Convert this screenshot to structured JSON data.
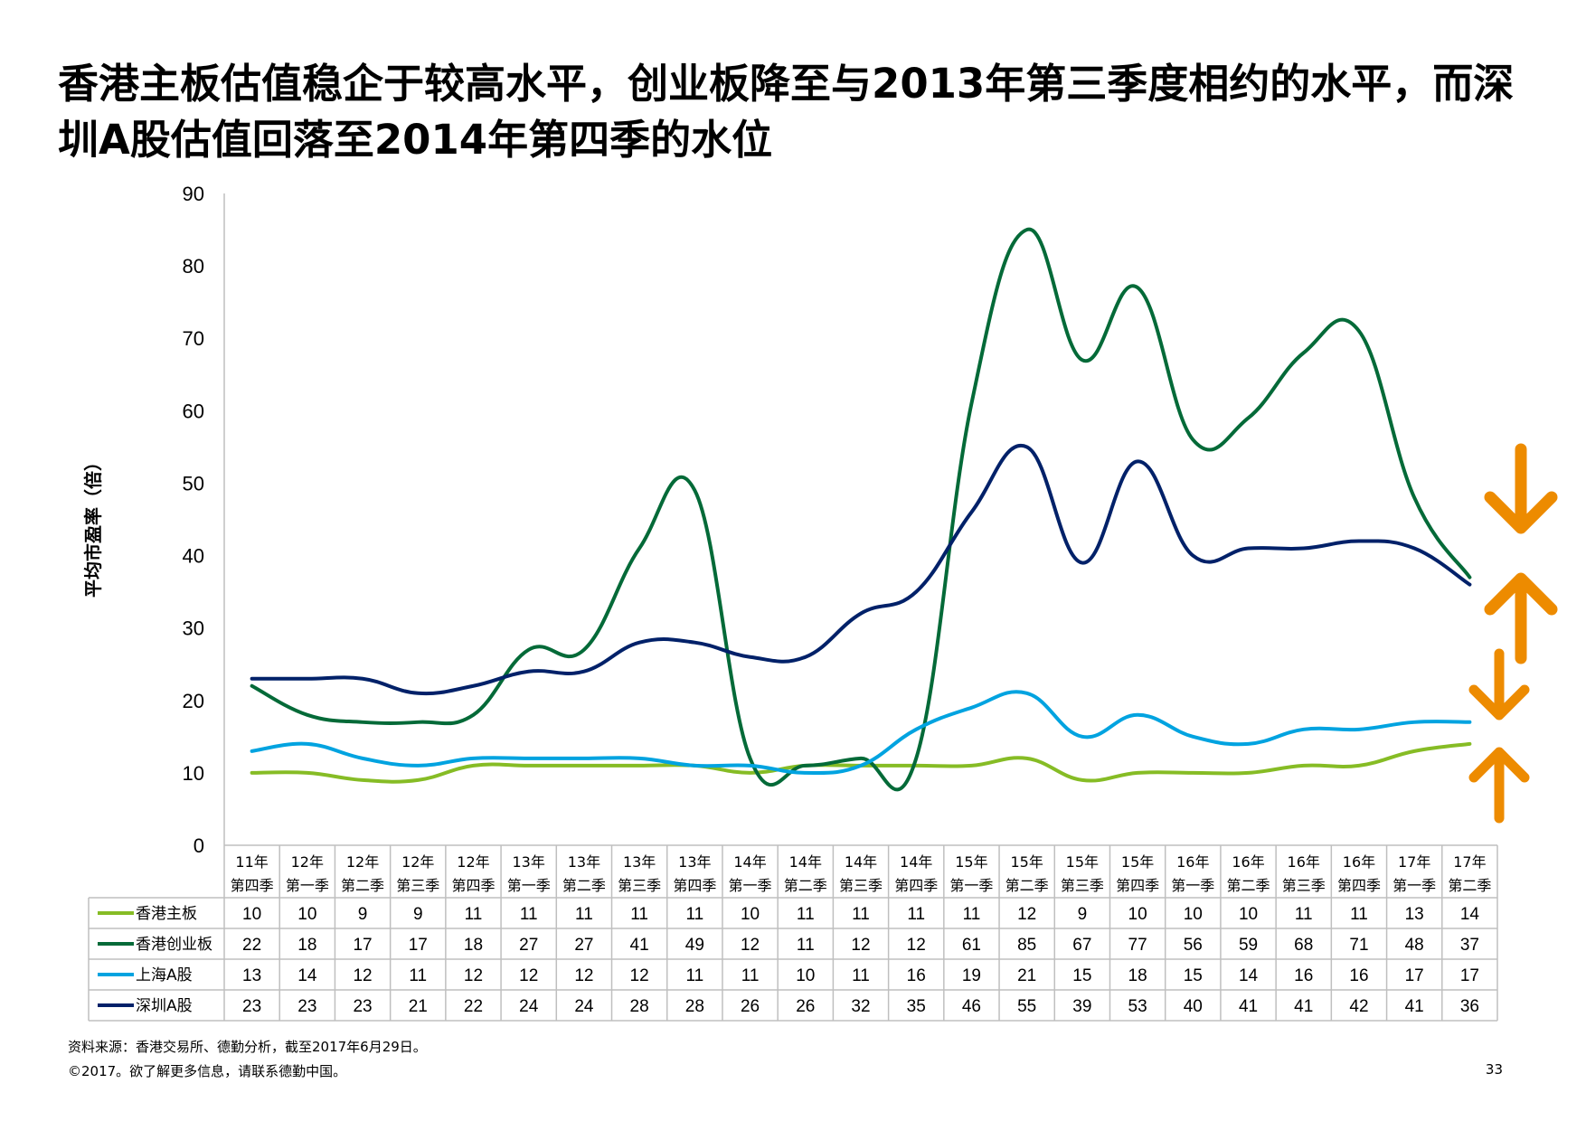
{
  "page": {
    "title": "香港主板估值稳企于较高水平，创业板降至与2013年第三季度相约的水平，而深圳A股估值回落至2014年第四季的水位",
    "source": "资料来源：香港交易所、德勤分析，截至2017年6月29日。",
    "copyright": "©2017。欲了解更多信息，请联系德勤中国。",
    "page_number": "33"
  },
  "colors": {
    "arrow": "#ED8B00",
    "grid": "#BFBFBF"
  },
  "chart_data": {
    "type": "line",
    "ylabel": "平均市盈率（倍）",
    "ylim": [
      0,
      90
    ],
    "yticks": [
      "0",
      "10",
      "20",
      "30",
      "40",
      "50",
      "60",
      "70",
      "80",
      "90"
    ],
    "categories": [
      [
        "11年",
        "第四季"
      ],
      [
        "12年",
        "第一季"
      ],
      [
        "12年",
        "第二季"
      ],
      [
        "12年",
        "第三季"
      ],
      [
        "12年",
        "第四季"
      ],
      [
        "13年",
        "第一季"
      ],
      [
        "13年",
        "第二季"
      ],
      [
        "13年",
        "第三季"
      ],
      [
        "13年",
        "第四季"
      ],
      [
        "14年",
        "第一季"
      ],
      [
        "14年",
        "第二季"
      ],
      [
        "14年",
        "第三季"
      ],
      [
        "14年",
        "第四季"
      ],
      [
        "15年",
        "第一季"
      ],
      [
        "15年",
        "第二季"
      ],
      [
        "15年",
        "第三季"
      ],
      [
        "15年",
        "第四季"
      ],
      [
        "16年",
        "第一季"
      ],
      [
        "16年",
        "第二季"
      ],
      [
        "16年",
        "第三季"
      ],
      [
        "16年",
        "第四季"
      ],
      [
        "17年",
        "第一季"
      ],
      [
        "17年",
        "第二季"
      ]
    ],
    "series": [
      {
        "name": "香港主板",
        "color": "#86BC25",
        "values": [
          10,
          10,
          9,
          9,
          11,
          11,
          11,
          11,
          11,
          10,
          11,
          11,
          11,
          11,
          12,
          9,
          10,
          10,
          10,
          11,
          11,
          13,
          14
        ]
      },
      {
        "name": "香港创业板",
        "color": "#046A38",
        "values": [
          22,
          18,
          17,
          17,
          18,
          27,
          27,
          41,
          49,
          12,
          11,
          12,
          12,
          61,
          85,
          67,
          77,
          56,
          59,
          68,
          71,
          48,
          37
        ]
      },
      {
        "name": "上海A股",
        "color": "#00A3E0",
        "values": [
          13,
          14,
          12,
          11,
          12,
          12,
          12,
          12,
          11,
          11,
          10,
          11,
          16,
          19,
          21,
          15,
          18,
          15,
          14,
          16,
          16,
          17,
          17
        ]
      },
      {
        "name": "深圳A股",
        "color": "#012169",
        "values": [
          23,
          23,
          23,
          21,
          22,
          24,
          24,
          28,
          28,
          26,
          26,
          32,
          35,
          46,
          55,
          39,
          53,
          40,
          41,
          41,
          42,
          41,
          36
        ]
      }
    ],
    "annotations": [
      {
        "name": "down-arrow",
        "series": "香港创业板",
        "direction": "down"
      },
      {
        "name": "up-arrow",
        "series": "深圳A股",
        "direction": "up"
      },
      {
        "name": "down-arrow",
        "series": "上海A股",
        "direction": "down"
      },
      {
        "name": "up-arrow",
        "series": "香港主板",
        "direction": "up"
      }
    ]
  }
}
